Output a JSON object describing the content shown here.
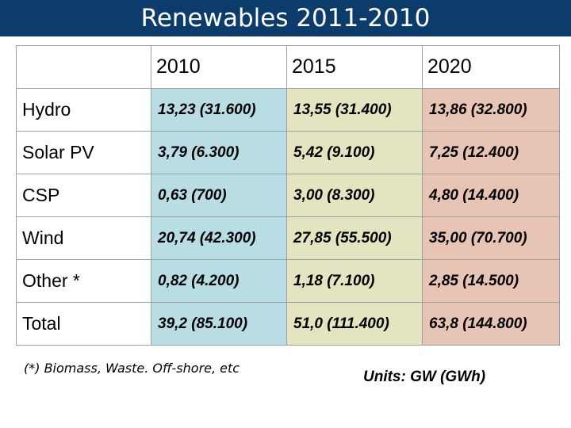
{
  "title": "Renewables 2011-2010",
  "table": {
    "header": [
      "",
      "2010",
      "2015",
      "2020"
    ],
    "rows": [
      {
        "label": "Hydro",
        "values": [
          "13,23 (31.600)",
          "13,55 (31.400)",
          "13,86 (32.800)"
        ]
      },
      {
        "label": "Solar PV",
        "values": [
          "3,79 (6.300)",
          "5,42 (9.100)",
          "7,25 (12.400)"
        ]
      },
      {
        "label": "CSP",
        "values": [
          "0,63 (700)",
          "3,00 (8.300)",
          "4,80 (14.400)"
        ]
      },
      {
        "label": "Wind",
        "values": [
          "20,74 (42.300)",
          "27,85 (55.500)",
          "35,00 (70.700)"
        ]
      },
      {
        "label": "Other *",
        "values": [
          "0,82 (4.200)",
          "1,18 (7.100)",
          "2,85 (14.500)"
        ]
      },
      {
        "label": "Total",
        "values": [
          "39,2 (85.100)",
          "51,0 (111.400)",
          "63,8 (144.800)"
        ]
      }
    ]
  },
  "footnote": "(*) Biomass, Waste. Off-shore, etc",
  "units": "Units: GW (GWh)",
  "colors": {
    "title_bar": "#0c3c6c",
    "col_2010": "#b8dde4",
    "col_2015": "#e3e4c0",
    "col_2020": "#e8c4b4"
  }
}
